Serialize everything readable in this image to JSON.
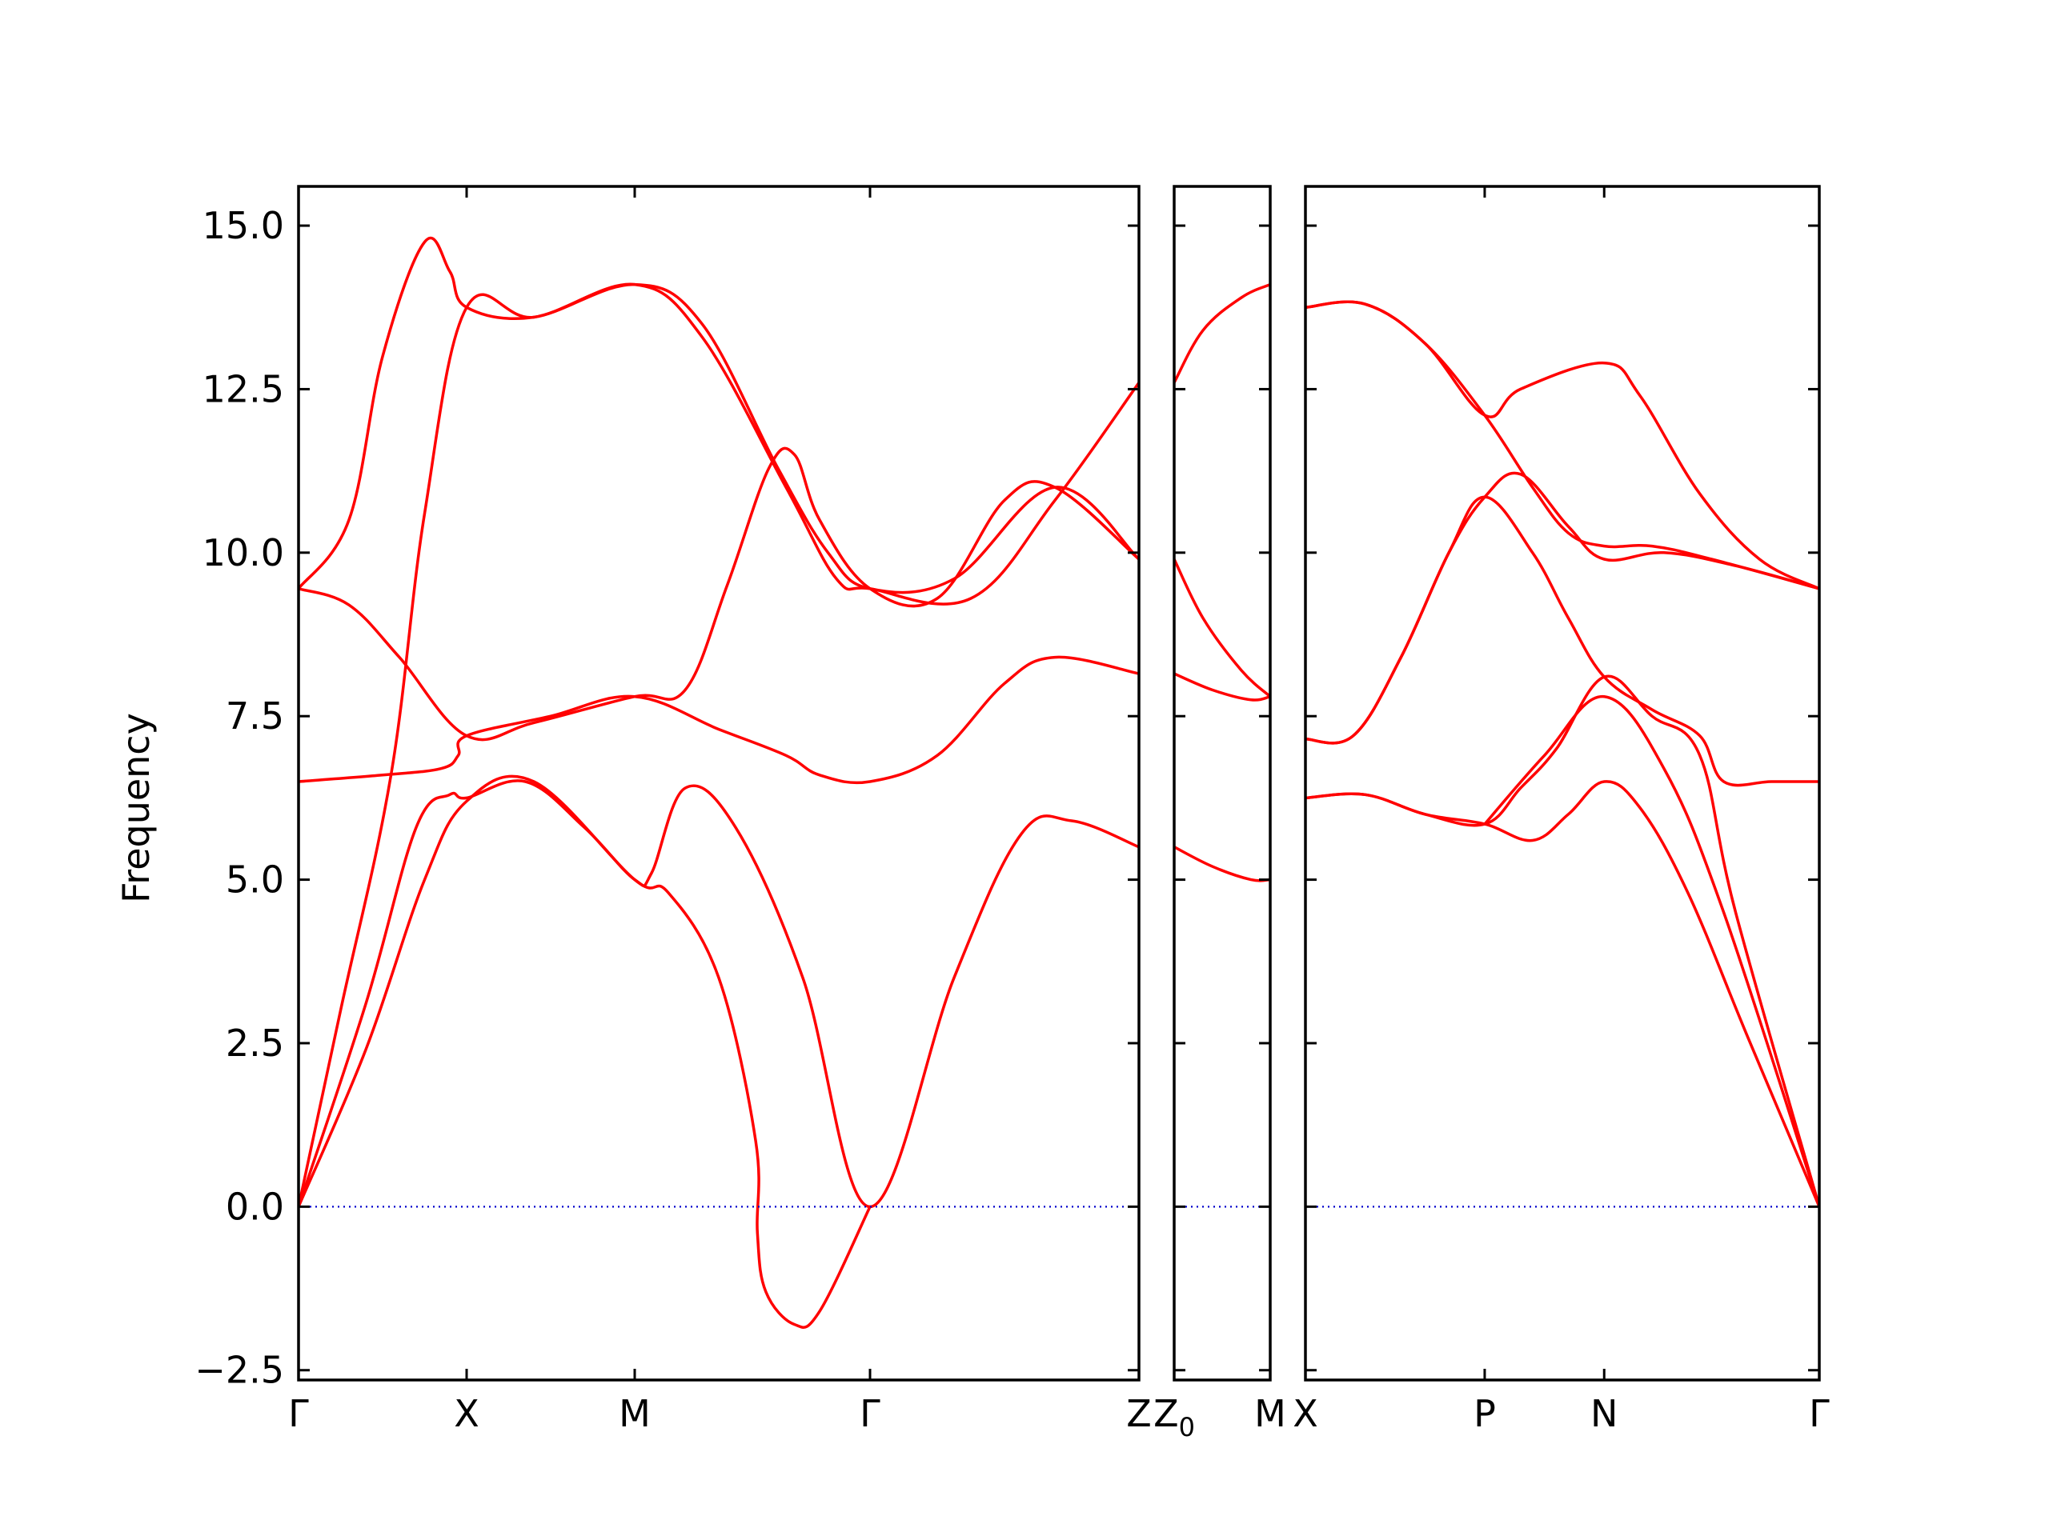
{
  "chart_data": {
    "type": "line",
    "ylabel": "Frequency",
    "xlabel": "",
    "ylim": [
      -2.65,
      15.6
    ],
    "yticks": [
      "−2.5",
      "0.0",
      "2.5",
      "5.0",
      "7.5",
      "10.0",
      "12.5",
      "15.0"
    ],
    "ytick_values": [
      -2.5,
      0,
      2.5,
      5,
      7.5,
      10,
      12.5,
      15
    ],
    "grid": false,
    "colors": {
      "bands": "#ff0000",
      "zero_line": "#0000cc",
      "axes": "#000000"
    },
    "panels": [
      {
        "name": "Γ-X-M-Γ-Z",
        "xlim": [
          0,
          5
        ],
        "xtick_values": [
          0,
          1,
          2,
          3.4,
          5
        ],
        "xtick_labels": [
          "Γ",
          "X",
          "M",
          "Γ",
          "Z"
        ],
        "series": [
          {
            "x": [
              0,
              0.3,
              0.5,
              0.75,
              0.9,
              1.0,
              1.4,
              2.0,
              2.4,
              2.9,
              3.2,
              3.4,
              4.0,
              4.5,
              5.0
            ],
            "y": [
              9.45,
              10.5,
              13.0,
              14.75,
              14.3,
              13.75,
              13.6,
              14.1,
              13.3,
              11.0,
              9.6,
              9.45,
              9.3,
              10.8,
              12.6
            ]
          },
          {
            "x": [
              0,
              0.25,
              0.55,
              0.75,
              1.0,
              1.4,
              2.0,
              2.4,
              2.85,
              3.15,
              3.4,
              3.9,
              4.5,
              5.0
            ],
            "y": [
              0,
              3.0,
              6.6,
              10.6,
              13.75,
              13.6,
              14.1,
              13.5,
              11.3,
              10.0,
              9.45,
              9.6,
              11.0,
              9.9
            ]
          },
          {
            "x": [
              0,
              0.3,
              0.6,
              1.0,
              1.4,
              2.0,
              2.3,
              2.55,
              2.8,
              2.95,
              3.1,
              3.4,
              3.8,
              4.2,
              4.5,
              5.0
            ],
            "y": [
              9.45,
              9.2,
              8.4,
              7.2,
              7.4,
              7.8,
              7.9,
              9.5,
              11.3,
              11.5,
              10.5,
              9.45,
              9.3,
              10.8,
              11.0,
              9.9
            ]
          },
          {
            "x": [
              0,
              0.5,
              0.85,
              0.95,
              1.0,
              1.5,
              2.0,
              2.5,
              2.9,
              3.1,
              3.4,
              3.8,
              4.2,
              4.5,
              5.0
            ],
            "y": [
              6.5,
              6.6,
              6.7,
              6.9,
              7.2,
              7.5,
              7.8,
              7.3,
              6.9,
              6.6,
              6.5,
              6.9,
              8.0,
              8.4,
              8.15
            ]
          },
          {
            "x": [
              0,
              0.4,
              0.7,
              0.9,
              1.0,
              1.35,
              1.7,
              2.0,
              2.1,
              2.3,
              2.6,
              3.0,
              3.4,
              3.9,
              4.3,
              4.6,
              5.0
            ],
            "y": [
              0,
              3.1,
              5.8,
              6.3,
              6.25,
              6.5,
              5.8,
              5.0,
              5.1,
              6.4,
              5.8,
              3.5,
              0,
              3.5,
              5.7,
              5.9,
              5.5
            ]
          },
          {
            "x": [
              0,
              0.4,
              0.75,
              1.0,
              1.4,
              2.0,
              2.2,
              2.5,
              2.72,
              2.73,
              2.78,
              2.95,
              3.1,
              3.4
            ],
            "y": [
              0,
              2.4,
              5.0,
              6.2,
              6.5,
              5.0,
              4.8,
              3.5,
              1.0,
              -0.4,
              -1.3,
              -1.8,
              -1.6,
              0
            ]
          },
          {
            "x": [
              0,
              3.4,
              5.0
            ],
            "y": [
              0,
              0,
              0
            ],
            "role": "zero"
          }
        ]
      },
      {
        "name": "Z0-M",
        "xlim": [
          0,
          1
        ],
        "xtick_values": [
          0,
          1
        ],
        "xtick_labels": [
          "Z0",
          "M"
        ],
        "series": [
          {
            "x": [
              0,
              0.3,
              0.7,
              1.0
            ],
            "y": [
              12.6,
              13.4,
              13.9,
              14.1
            ]
          },
          {
            "x": [
              0,
              0.3,
              0.7,
              1.0
            ],
            "y": [
              9.9,
              9.0,
              8.2,
              7.8
            ]
          },
          {
            "x": [
              0,
              0.4,
              0.8,
              1.0
            ],
            "y": [
              8.15,
              7.9,
              7.75,
              7.8
            ]
          },
          {
            "x": [
              0,
              0.4,
              0.8,
              1.0
            ],
            "y": [
              5.5,
              5.2,
              5.0,
              5.0
            ]
          },
          {
            "x": [
              0,
              1.0
            ],
            "y": [
              0,
              0
            ],
            "role": "zero"
          }
        ]
      },
      {
        "name": "X-P-N-Γ",
        "xlim": [
          0,
          4.3
        ],
        "xtick_values": [
          0,
          1.5,
          2.5,
          4.3
        ],
        "xtick_labels": [
          "X",
          "P",
          "N",
          "Γ"
        ],
        "series": [
          {
            "x": [
              0,
              0.5,
              1.0,
              1.5,
              1.8,
              2.5,
              2.8,
              3.3,
              3.8,
              4.3
            ],
            "y": [
              13.75,
              13.8,
              13.2,
              12.1,
              12.5,
              12.9,
              12.4,
              10.9,
              9.9,
              9.45
            ]
          },
          {
            "x": [
              0,
              0.5,
              1.0,
              1.5,
              1.9,
              2.2,
              2.5,
              2.9,
              3.4,
              4.3
            ],
            "y": [
              13.75,
              13.8,
              13.2,
              12.1,
              11.0,
              10.3,
              10.1,
              10.1,
              9.9,
              9.45
            ]
          },
          {
            "x": [
              0,
              0.4,
              0.8,
              1.2,
              1.5,
              1.8,
              2.2,
              2.5,
              3.0,
              3.6,
              4.3
            ],
            "y": [
              7.15,
              7.2,
              8.4,
              10.0,
              10.85,
              11.2,
              10.4,
              9.9,
              10.0,
              9.8,
              9.45
            ]
          },
          {
            "x": [
              0,
              0.4,
              0.8,
              1.2,
              1.5,
              1.9,
              2.2,
              2.5,
              2.9,
              3.3,
              3.5,
              3.9,
              4.3
            ],
            "y": [
              7.15,
              7.2,
              8.4,
              10.0,
              10.85,
              10.0,
              9.0,
              8.1,
              7.6,
              7.2,
              6.5,
              6.5,
              6.5
            ]
          },
          {
            "x": [
              0,
              0.5,
              1.0,
              1.5,
              1.8,
              2.1,
              2.5,
              2.9,
              3.3,
              3.6,
              4.3
            ],
            "y": [
              6.25,
              6.3,
              6.0,
              5.85,
              6.4,
              7.0,
              8.1,
              7.5,
              6.9,
              4.5,
              0
            ]
          },
          {
            "x": [
              0,
              0.5,
              1.0,
              1.5,
              1.9,
              2.2,
              2.5,
              2.8,
              3.2,
              3.7,
              4.3
            ],
            "y": [
              6.25,
              6.3,
              6.0,
              5.85,
              5.6,
              6.0,
              6.5,
              6.1,
              4.8,
              2.6,
              0
            ]
          },
          {
            "x": [
              1.5,
              2.0,
              2.5,
              3.0,
              3.5,
              4.3
            ],
            "y": [
              5.85,
              6.9,
              7.8,
              6.7,
              4.5,
              0
            ]
          },
          {
            "x": [
              0,
              4.3
            ],
            "y": [
              0,
              0
            ],
            "role": "zero"
          }
        ]
      }
    ]
  }
}
